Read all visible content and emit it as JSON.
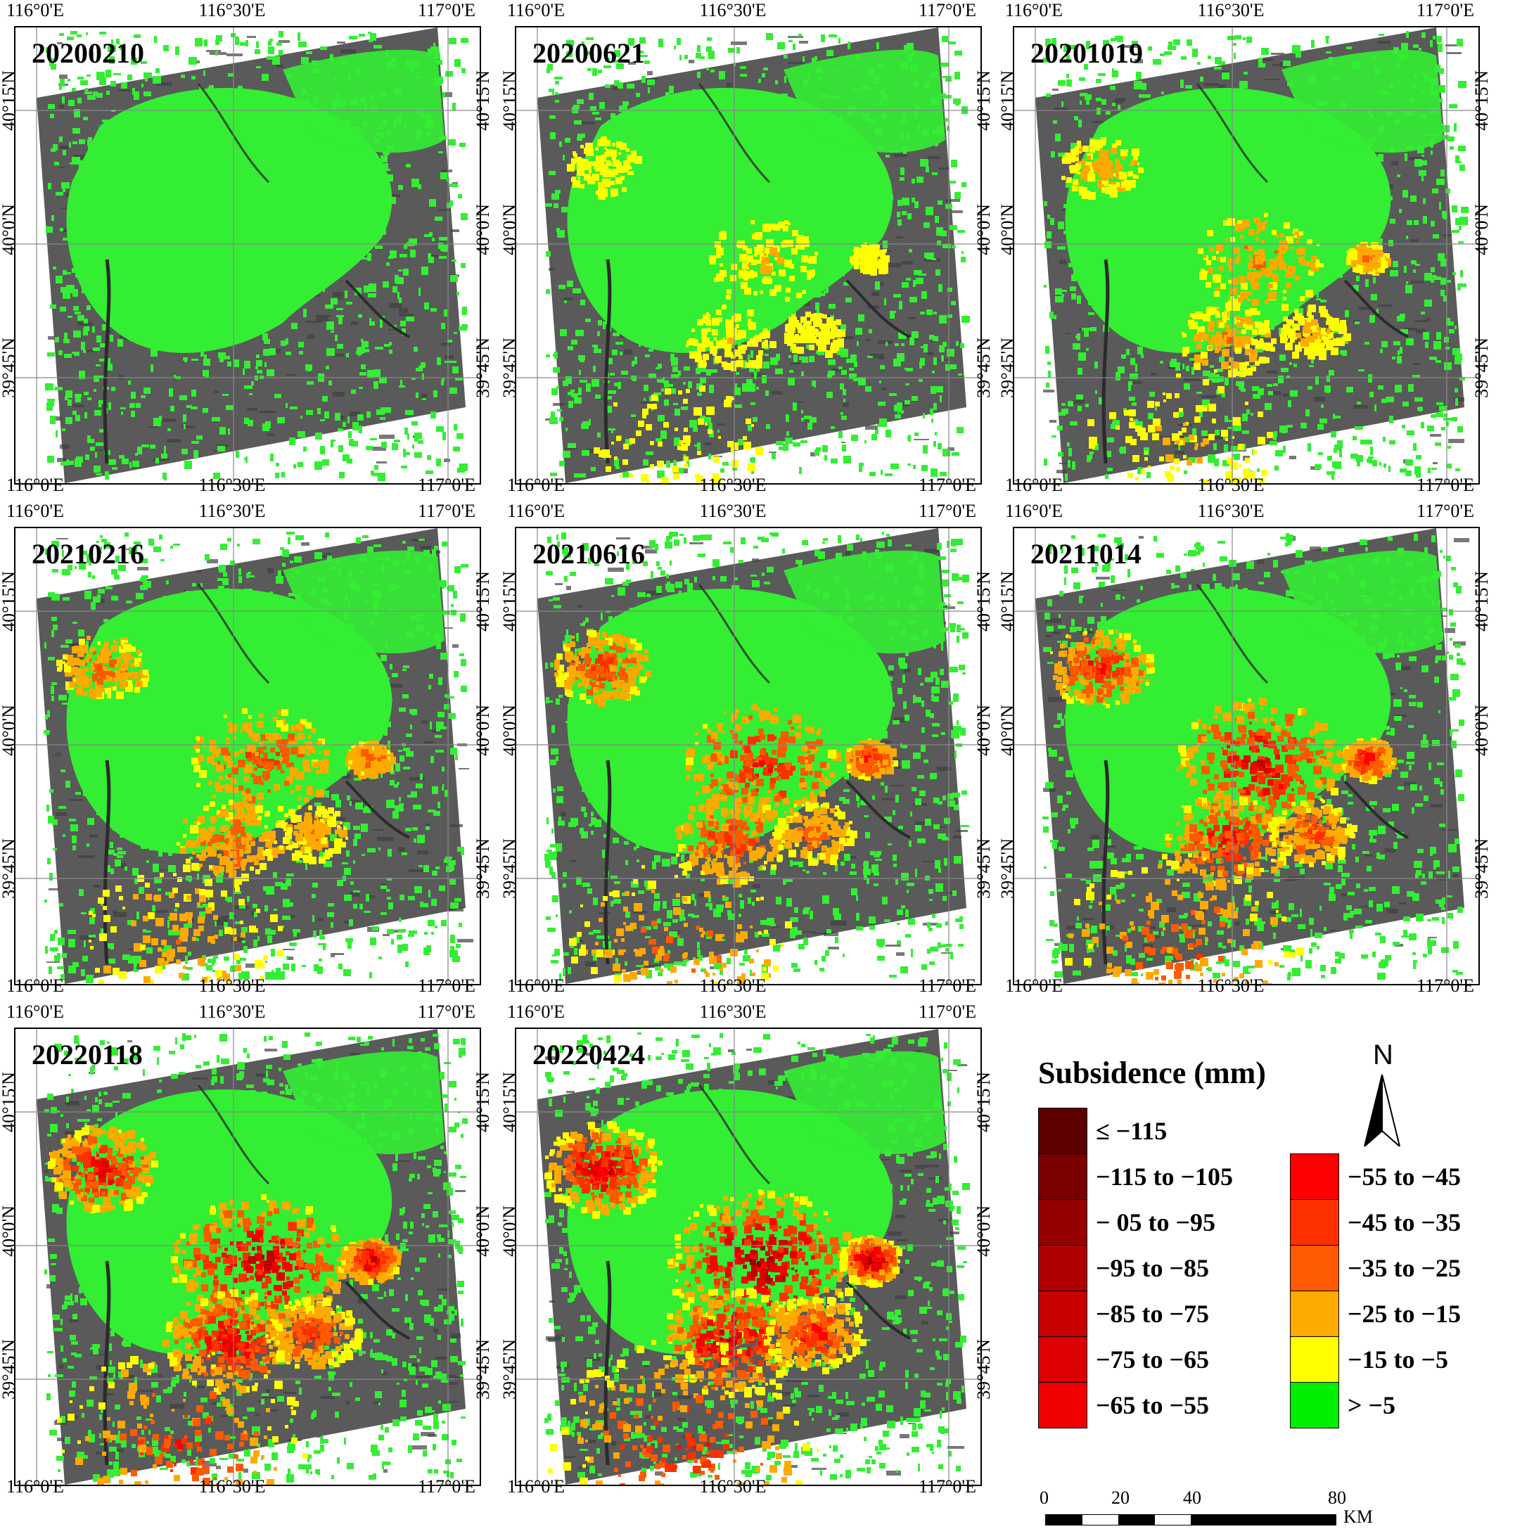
{
  "panels": [
    {
      "date": "20200210",
      "level": 0
    },
    {
      "date": "20200621",
      "level": 1
    },
    {
      "date": "20201019",
      "level": 2
    },
    {
      "date": "20210216",
      "level": 3
    },
    {
      "date": "20210616",
      "level": 4
    },
    {
      "date": "20211014",
      "level": 5
    },
    {
      "date": "20220118",
      "level": 6
    },
    {
      "date": "20220424",
      "level": 7
    }
  ],
  "axis_labels": {
    "lon": [
      "116°0'E",
      "116°30'E",
      "117°0'E"
    ],
    "lat": [
      "40°15'N",
      "40°0'N",
      "39°45'N"
    ]
  },
  "legend": {
    "title": "Subsidence (mm)",
    "left_classes": [
      {
        "label": "≤ −115",
        "color": "#5c0000"
      },
      {
        "label": "−115 to −105",
        "color": "#7a0000"
      },
      {
        "label": "− 05 to −95",
        "color": "#960000"
      },
      {
        "label": "−95 to −85",
        "color": "#b00000"
      },
      {
        "label": "−85 to −75",
        "color": "#c80000"
      },
      {
        "label": "−75 to −65",
        "color": "#dc0000"
      },
      {
        "label": "−65 to −55",
        "color": "#f00000"
      }
    ],
    "right_classes": [
      {
        "label": "−55 to −45",
        "color": "#ff0000"
      },
      {
        "label": "−45 to −35",
        "color": "#ff3000"
      },
      {
        "label": "−35 to −25",
        "color": "#ff5a00"
      },
      {
        "label": "−25 to −15",
        "color": "#ffaa00"
      },
      {
        "label": "−15 to −5",
        "color": "#ffff00"
      },
      {
        "label": "> −5",
        "color": "#00ee00"
      }
    ],
    "north_label": "N",
    "scale": {
      "ticks": [
        "0",
        "20",
        "40",
        "80"
      ],
      "unit": "KM"
    }
  },
  "colors": {
    "background_sar": "#555555",
    "stable": "#33ee33"
  }
}
